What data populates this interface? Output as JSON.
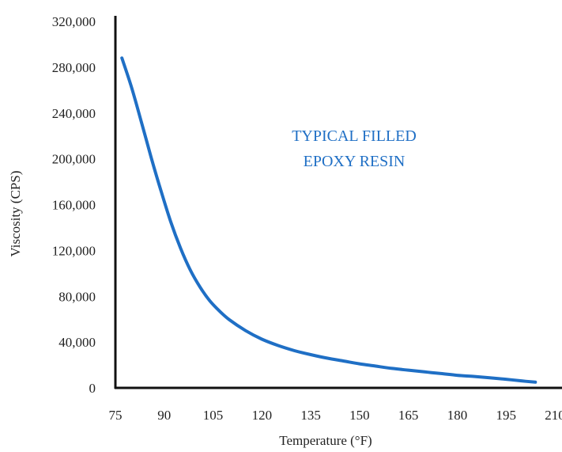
{
  "chart_data": {
    "type": "line",
    "title": "",
    "xlabel": "Temperature (°F)",
    "ylabel": "Viscosity (CPS)",
    "xlim": [
      75,
      210
    ],
    "ylim": [
      0,
      320000
    ],
    "x_ticks": [
      "75",
      "90",
      "105",
      "120",
      "135",
      "150",
      "165",
      "180",
      "195",
      "210"
    ],
    "y_ticks": [
      "0",
      "40,000",
      "80,000",
      "120,000",
      "160,000",
      "200,000",
      "240,000",
      "280,000",
      "320,000"
    ],
    "grid": false,
    "annotation": [
      "TYPICAL FILLED",
      "EPOXY RESIN"
    ],
    "series": [
      {
        "color": "#1f6fc5",
        "x": [
          77,
          80,
          83,
          86,
          89,
          92,
          95,
          98,
          101,
          104,
          107,
          110,
          115,
          120,
          125,
          130,
          135,
          140,
          145,
          150,
          155,
          160,
          165,
          170,
          175,
          180,
          185,
          190,
          195,
          200,
          204
        ],
        "y": [
          288000,
          262000,
          232000,
          201000,
          172000,
          145000,
          122000,
          103000,
          88000,
          76000,
          67000,
          59500,
          50000,
          42500,
          37000,
          32500,
          29000,
          26000,
          23500,
          21000,
          19000,
          17000,
          15500,
          14000,
          12500,
          11000,
          10000,
          8800,
          7500,
          6000,
          5000
        ]
      }
    ]
  }
}
